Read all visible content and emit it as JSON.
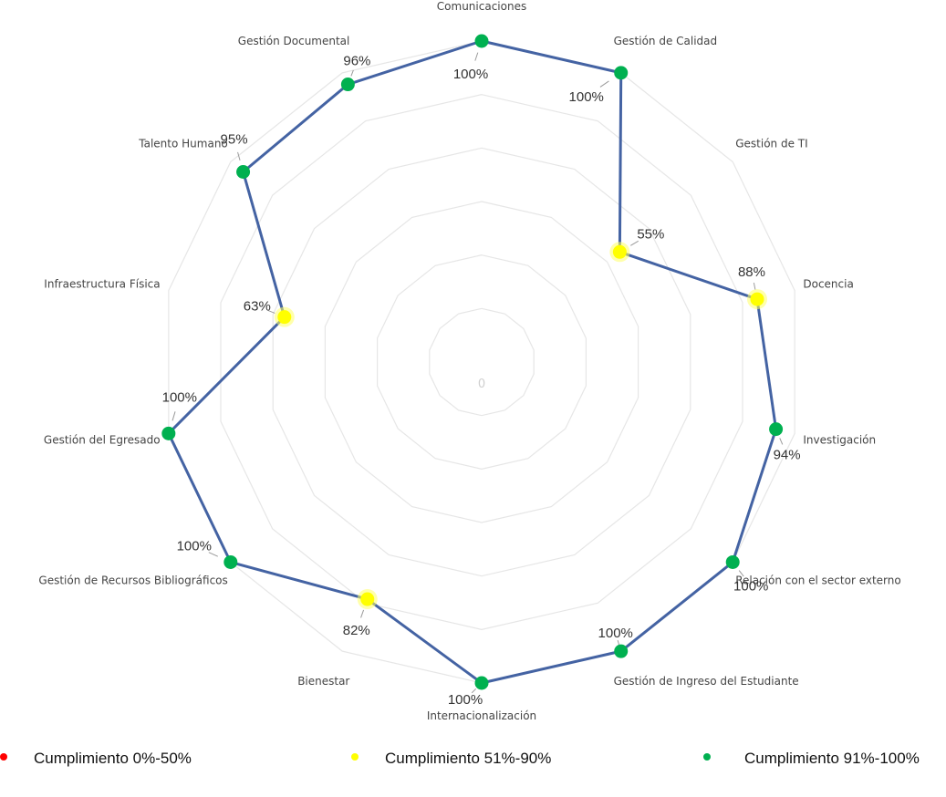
{
  "chart_data": {
    "type": "radar",
    "categories": [
      "Comunicaciones",
      "Gestión de Calidad",
      "Gestión de TI",
      "Docencia",
      "Investigación",
      "Relación con el sector externo",
      "Gestión de Ingreso del Estudiante",
      "Internacionalización",
      "Bienestar",
      "Gestión de Recursos Bibliográficos",
      "Gestión del Egresado",
      "Infraestructura Física",
      "Talento Humano",
      "Gestión Documental"
    ],
    "values": [
      100,
      100,
      55,
      88,
      94,
      100,
      100,
      100,
      82,
      100,
      100,
      63,
      95,
      96
    ],
    "value_labels": [
      "100%",
      "100%",
      "55%",
      "88%",
      "94%",
      "100%",
      "100%",
      "100%",
      "82%",
      "100%",
      "100%",
      "63%",
      "95%",
      "96%"
    ],
    "axis_min_label": "0",
    "range": [
      0,
      100
    ],
    "grid_rings": 6,
    "legend_position": "bottom",
    "colors": {
      "line": "#4463a3",
      "grid": "#e6e6e6",
      "low": "#ff0000",
      "mid": "#ffff00",
      "high": "#00b050"
    },
    "legend": [
      {
        "label": "Cumplimiento 0%-50%",
        "color": "#ff0000"
      },
      {
        "label": "Cumplimiento 51%-90%",
        "color": "#ffff00"
      },
      {
        "label": "Cumplimiento 91%-100%",
        "color": "#00b050"
      }
    ]
  }
}
